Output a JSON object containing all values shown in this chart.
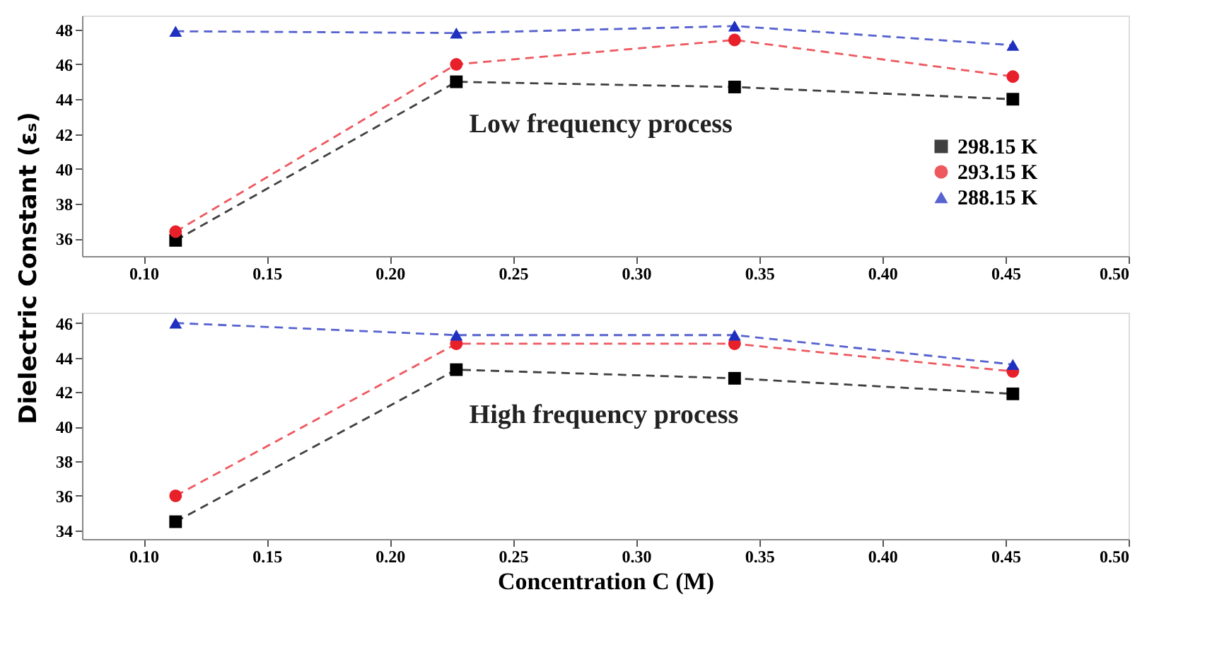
{
  "chart_data": [
    {
      "type": "line",
      "ylabel": "Dielectric Constant (εₛ)",
      "annotations": [
        "Low frequency process"
      ],
      "x": [
        0.113,
        0.227,
        0.34,
        0.453
      ],
      "xlim": [
        0.075,
        0.5
      ],
      "xticks": [
        {
          "value": 0.1,
          "label": "0.10"
        },
        0.15,
        {
          "value": 0.2,
          "label": "0.20"
        },
        0.25,
        {
          "value": 0.3,
          "label": "0.30"
        },
        0.35,
        {
          "value": 0.4,
          "label": "0.40"
        },
        0.45,
        {
          "value": 0.5,
          "label": "0.50"
        }
      ],
      "ylim": [
        35,
        48.8
      ],
      "yticks": [
        36,
        38,
        40,
        42,
        44,
        46,
        48
      ],
      "legend": "right",
      "line_style": "dashed",
      "series": [
        {
          "name": "298.15 K",
          "color": "#000000",
          "marker": "square",
          "values": [
            35.9,
            45.0,
            44.7,
            44.0
          ]
        },
        {
          "name": "293.15 K",
          "color": "#e8202a",
          "marker": "circle",
          "values": [
            36.4,
            46.0,
            47.4,
            45.3
          ]
        },
        {
          "name": "288.15 K",
          "color": "#1f2fbf",
          "marker": "triangle",
          "values": [
            47.9,
            47.8,
            48.2,
            47.1
          ]
        }
      ]
    },
    {
      "type": "line",
      "xlabel": "Concentration C (M)",
      "annotations": [
        "High frequency process"
      ],
      "x": [
        0.113,
        0.227,
        0.34,
        0.453
      ],
      "xlim": [
        0.075,
        0.5
      ],
      "xticks": [
        {
          "value": 0.1,
          "label": "0.10"
        },
        0.15,
        {
          "value": 0.2,
          "label": "0.20"
        },
        0.25,
        {
          "value": 0.3,
          "label": "0.30"
        },
        0.35,
        {
          "value": 0.4,
          "label": "0.40"
        },
        0.45,
        {
          "value": 0.5,
          "label": "0.50"
        }
      ],
      "ylim": [
        33.5,
        46.6
      ],
      "yticks": [
        34,
        36,
        38,
        40,
        42,
        44,
        46
      ],
      "line_style": "dashed",
      "series": [
        {
          "color": "#000000",
          "marker": "square",
          "values": [
            34.5,
            43.3,
            42.8,
            41.9
          ]
        },
        {
          "color": "#e8202a",
          "marker": "circle",
          "values": [
            36.0,
            44.8,
            44.8,
            43.2
          ]
        },
        {
          "color": "#1f2fbf",
          "marker": "triangle",
          "values": [
            46.0,
            45.3,
            45.3,
            43.6
          ]
        }
      ]
    }
  ]
}
